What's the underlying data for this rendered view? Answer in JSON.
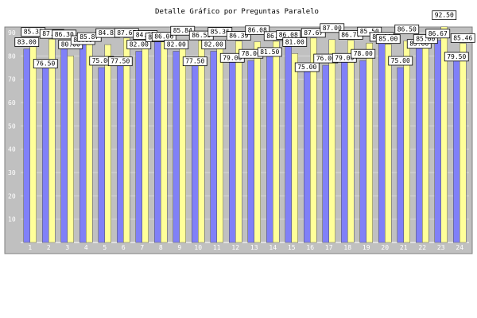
{
  "chart_data": {
    "type": "bar",
    "title": "Detalle Gráfico por Preguntas Paralelo",
    "categories": [
      "1",
      "2",
      "3",
      "4",
      "5",
      "6",
      "7",
      "8",
      "9",
      "10",
      "11",
      "12",
      "13",
      "14",
      "15",
      "16",
      "17",
      "18",
      "19",
      "20",
      "21",
      "22",
      "23",
      "24"
    ],
    "series": [
      {
        "values": [
          83.0,
          76.5,
          86.3,
          86.6,
          75.0,
          77.5,
          82.0,
          87.8,
          82.0,
          77.5,
          82.0,
          79.0,
          78.0,
          81.5,
          86.08,
          75.0,
          76.0,
          79.0,
          78.0,
          88.0,
          75.0,
          85.0,
          86.67,
          79.5
        ]
      },
      {
        "values": [
          85.33,
          87.22,
          80.0,
          85.87,
          84.85,
          87.67,
          84.0,
          86.06,
          85.84,
          86.55,
          85.36,
          86.39,
          86.08,
          86.3,
          81.0,
          87.67,
          87.0,
          86.77,
          85.5,
          85.0,
          86.5,
          85.0,
          92.5,
          85.46
        ]
      }
    ],
    "ylim": [
      0,
      90
    ],
    "yticks": [
      10,
      20,
      30,
      40,
      50,
      60,
      70,
      80,
      90
    ],
    "colors": {
      "series1": "#8080f8",
      "series2": "#ffff99",
      "plot_bg": "#c0c0c0"
    },
    "grid": true
  }
}
